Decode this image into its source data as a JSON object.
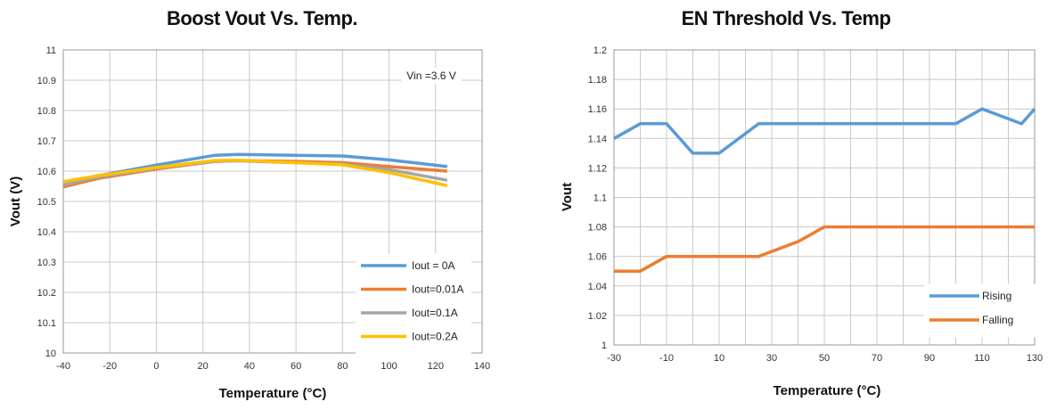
{
  "chart_data": [
    {
      "type": "line",
      "title": "Boost Vout Vs. Temp.",
      "xlabel": "Temperature (°C)",
      "ylabel": "Vout (V)",
      "xlim": [
        -40,
        140
      ],
      "ylim": [
        10,
        11
      ],
      "xticks": [
        -40,
        -20,
        0,
        20,
        40,
        60,
        80,
        100,
        120,
        140
      ],
      "yticks": [
        10,
        10.1,
        10.2,
        10.3,
        10.4,
        10.5,
        10.6,
        10.7,
        10.8,
        10.9,
        11
      ],
      "ytick_labels": [
        "10",
        "10.1",
        "10.2",
        "10.3",
        "10.4",
        "10.5",
        "10.6",
        "10.7",
        "10.8",
        "10.9",
        "11"
      ],
      "grid": true,
      "legend_position": "bottom-right",
      "annotation": "Vin =3.6 V",
      "series": [
        {
          "name": "Iout = 0A",
          "color": "#5b9bd5",
          "x": [
            -40,
            -25,
            0,
            25,
            35,
            60,
            80,
            100,
            125
          ],
          "y": [
            10.56,
            10.585,
            10.62,
            10.652,
            10.655,
            10.652,
            10.65,
            10.637,
            10.615
          ]
        },
        {
          "name": "Iout=0.01A",
          "color": "#ed7d31",
          "x": [
            -40,
            -25,
            0,
            25,
            35,
            60,
            80,
            100,
            125
          ],
          "y": [
            10.548,
            10.576,
            10.607,
            10.632,
            10.635,
            10.632,
            10.628,
            10.615,
            10.6
          ]
        },
        {
          "name": "Iout=0.1A",
          "color": "#a5a5a5",
          "x": [
            -40,
            -25,
            0,
            25,
            35,
            60,
            80,
            100,
            125
          ],
          "y": [
            10.555,
            10.58,
            10.61,
            10.632,
            10.634,
            10.628,
            10.623,
            10.605,
            10.57
          ]
        },
        {
          "name": "Iout=0.2A",
          "color": "#ffc000",
          "x": [
            -40,
            -25,
            0,
            25,
            35,
            60,
            80,
            100,
            125
          ],
          "y": [
            10.565,
            10.585,
            10.612,
            10.635,
            10.636,
            10.628,
            10.621,
            10.595,
            10.552
          ]
        }
      ]
    },
    {
      "type": "line",
      "title": "EN Threshold Vs. Temp",
      "xlabel": "Temperature (°C)",
      "ylabel": "Vout",
      "xlim": [
        -30,
        130
      ],
      "ylim": [
        1,
        1.2
      ],
      "xticks": [
        -30,
        -10,
        10,
        30,
        50,
        70,
        90,
        110,
        130
      ],
      "xticks_gridlines": [
        -30,
        -20,
        -10,
        0,
        10,
        20,
        30,
        40,
        50,
        60,
        70,
        80,
        90,
        100,
        110,
        120,
        130
      ],
      "yticks": [
        1,
        1.02,
        1.04,
        1.06,
        1.08,
        1.1,
        1.12,
        1.14,
        1.16,
        1.18,
        1.2
      ],
      "ytick_labels": [
        "1",
        "1.02",
        "1.04",
        "1.06",
        "1.08",
        "1.1",
        "1.12",
        "1.14",
        "1.16",
        "1.18",
        "1.2"
      ],
      "grid": true,
      "legend_position": "bottom-right",
      "series": [
        {
          "name": "Rising",
          "color": "#5b9bd5",
          "x": [
            -30,
            -20,
            -10,
            0,
            10,
            25,
            40,
            50,
            100,
            110,
            125,
            130
          ],
          "y": [
            1.14,
            1.15,
            1.15,
            1.13,
            1.13,
            1.15,
            1.15,
            1.15,
            1.15,
            1.16,
            1.15,
            1.16
          ]
        },
        {
          "name": "Falling",
          "color": "#ed7d31",
          "x": [
            -30,
            -20,
            -10,
            0,
            10,
            25,
            40,
            50,
            130
          ],
          "y": [
            1.05,
            1.05,
            1.06,
            1.06,
            1.06,
            1.06,
            1.07,
            1.08,
            1.08
          ]
        }
      ]
    }
  ]
}
